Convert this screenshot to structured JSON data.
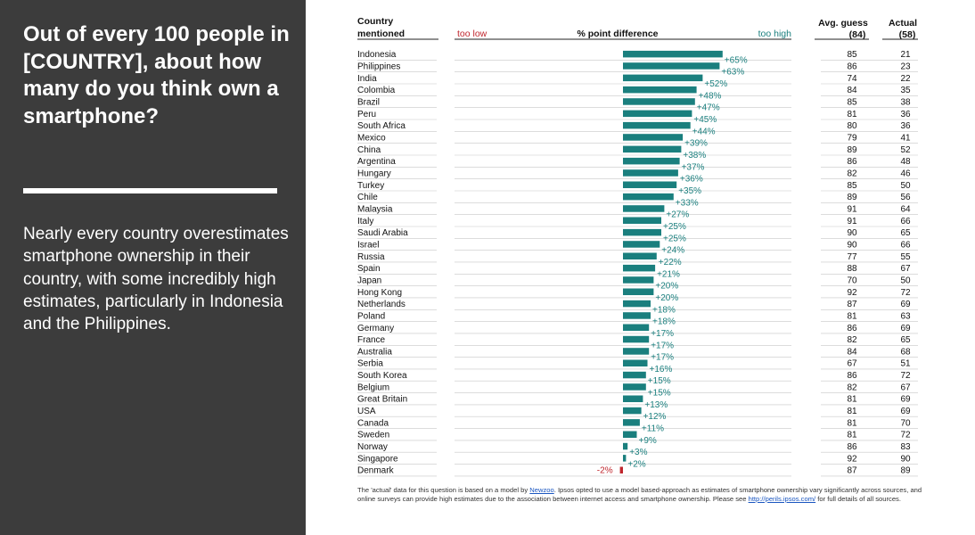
{
  "question": "Out of every 100 people in [COUNTRY], about how many do you think own a smartphone?",
  "summary": "Nearly every country overestimates smartphone ownership in their country, with some incredibly high estimates, particularly in Indonesia and the Philippines.",
  "colors": {
    "positive": "#1a7f7e",
    "negative": "#c0262d",
    "panel": "#3c3c3c"
  },
  "chart_data": {
    "type": "bar",
    "headers": {
      "country_line1": "Country",
      "country_line2": "mentioned",
      "too_low": "too low",
      "diff": "% point difference",
      "too_high": "too high",
      "avg_line1": "Avg. guess",
      "avg_line2": "(84)",
      "actual_line1": "Actual",
      "actual_line2": "(58)"
    },
    "categories": [
      "Indonesia",
      "Philippines",
      "India",
      "Colombia",
      "Brazil",
      "Peru",
      "South Africa",
      "Mexico",
      "China",
      "Argentina",
      "Hungary",
      "Turkey",
      "Chile",
      "Malaysia",
      "Italy",
      "Saudi Arabia",
      "Israel",
      "Russia",
      "Spain",
      "Japan",
      "Hong Kong",
      "Netherlands",
      "Poland",
      "Germany",
      "France",
      "Australia",
      "Serbia",
      "South Korea",
      "Belgium",
      "Great Britain",
      "USA",
      "Canada",
      "Sweden",
      "Norway",
      "Singapore",
      "Denmark"
    ],
    "values": [
      65,
      63,
      52,
      48,
      47,
      45,
      44,
      39,
      38,
      37,
      36,
      35,
      33,
      27,
      25,
      25,
      24,
      22,
      21,
      20,
      20,
      18,
      18,
      17,
      17,
      17,
      16,
      15,
      15,
      13,
      12,
      11,
      9,
      3,
      2,
      -2
    ],
    "labels": [
      "+65%",
      "+63%",
      "+52%",
      "+48%",
      "+47%",
      "+45%",
      "+44%",
      "+39%",
      "+38%",
      "+37%",
      "+36%",
      "+35%",
      "+33%",
      "+27%",
      "+25%",
      "+25%",
      "+24%",
      "+22%",
      "+21%",
      "+20%",
      "+20%",
      "+18%",
      "+18%",
      "+17%",
      "+17%",
      "+17%",
      "+16%",
      "+15%",
      "+15%",
      "+13%",
      "+12%",
      "+11%",
      "+9%",
      "+3%",
      "+2%",
      "-2%"
    ],
    "avg_guess": [
      85,
      86,
      74,
      84,
      85,
      81,
      80,
      79,
      89,
      86,
      82,
      85,
      89,
      91,
      91,
      90,
      90,
      77,
      88,
      70,
      92,
      87,
      81,
      86,
      82,
      84,
      67,
      86,
      82,
      81,
      81,
      81,
      81,
      86,
      92,
      87
    ],
    "actual": [
      21,
      23,
      22,
      35,
      38,
      36,
      36,
      41,
      52,
      48,
      46,
      50,
      56,
      64,
      66,
      65,
      66,
      55,
      67,
      50,
      72,
      69,
      63,
      69,
      65,
      68,
      51,
      72,
      67,
      69,
      69,
      70,
      72,
      83,
      90,
      89
    ]
  },
  "footnote": {
    "part1": "The 'actual' data for this question is based on a model by ",
    "link1": "Newzoo",
    "part2": ". Ipsos opted to use a model based-approach as estimates of smartphone ownership vary significantly across sources, and online surveys can provide high estimates due to the association between internet access and smartphone ownership. Please see ",
    "link2": "http://perils.ipsos.com/",
    "part3": " for full details of all sources."
  }
}
